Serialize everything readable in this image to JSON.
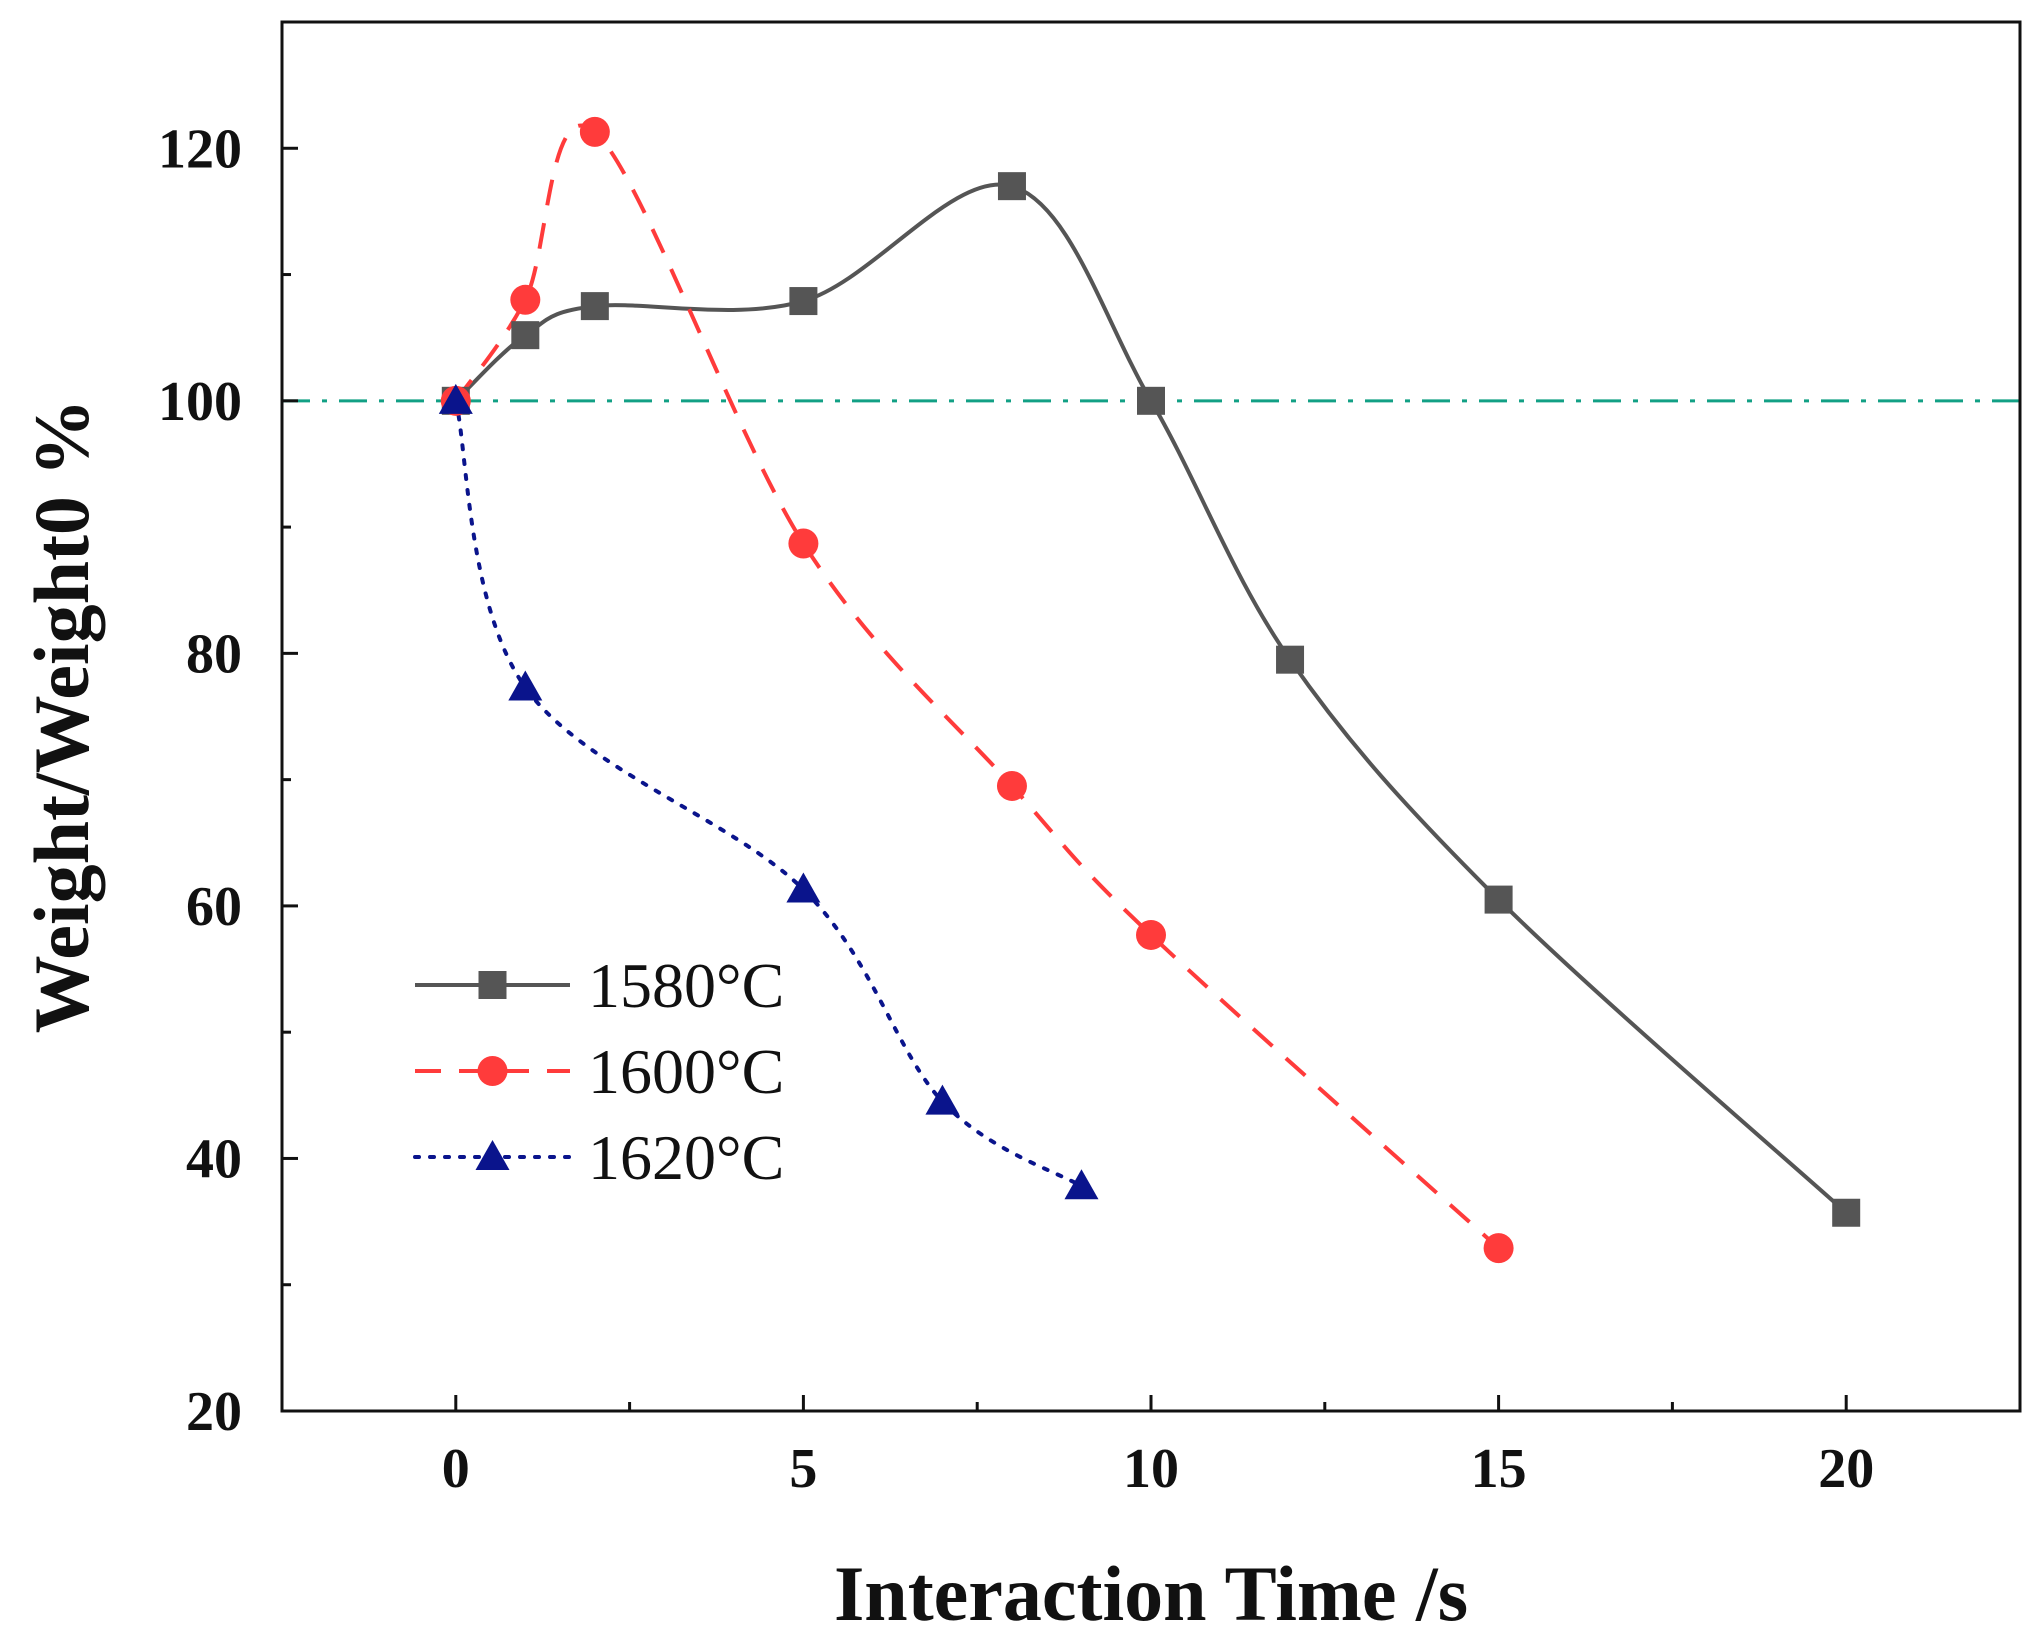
{
  "chart_data": {
    "type": "line",
    "title": "",
    "xlabel": "Interaction Time /s",
    "ylabel": "Weight/Weight0 %",
    "xlim": [
      -2.5,
      22.5
    ],
    "ylim": [
      20,
      130
    ],
    "x_ticks": [
      0,
      5,
      10,
      15,
      20
    ],
    "x_minor_ticks": [
      2.5,
      7.5,
      12.5,
      17.5
    ],
    "x_tick_labels": [
      "0",
      "5",
      "10",
      "15",
      "20"
    ],
    "y_ticks": [
      20,
      40,
      60,
      80,
      100,
      120
    ],
    "y_minor_ticks": [
      30,
      50,
      70,
      90,
      110
    ],
    "y_tick_labels": [
      "20",
      "40",
      "60",
      "80",
      "100",
      "120"
    ],
    "grid": false,
    "legend_position": "lower-left",
    "reference_line": {
      "y": 100,
      "color": "#12A085",
      "style": "dash-dot"
    },
    "series": [
      {
        "name": "1580°C",
        "label": "1580°C",
        "color": "#555555",
        "line_style": "solid",
        "marker": "square",
        "x": [
          0,
          1,
          2,
          5,
          8,
          10,
          12,
          15,
          20
        ],
        "y": [
          100,
          105.2,
          107.5,
          107.9,
          117,
          100,
          79.5,
          60.5,
          35.7
        ]
      },
      {
        "name": "1600°C",
        "label": "1600°C",
        "color": "#FF3B3B",
        "line_style": "dashed",
        "marker": "circle",
        "x": [
          0,
          1,
          2,
          5,
          8,
          10,
          15
        ],
        "y": [
          100,
          108,
          121.3,
          88.7,
          69.5,
          57.7,
          32.9
        ]
      },
      {
        "name": "1620°C",
        "label": "1620°C",
        "color": "#0A148C",
        "line_style": "dotted",
        "marker": "triangle",
        "x": [
          0,
          1,
          5,
          7,
          9
        ],
        "y": [
          100,
          77.3,
          61.3,
          44.5,
          37.8
        ]
      }
    ]
  }
}
